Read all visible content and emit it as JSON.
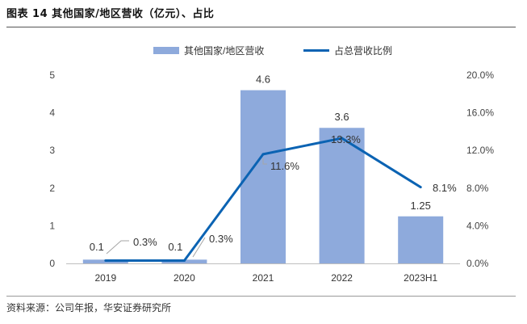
{
  "figure": {
    "title": "图表 14 其他国家/地区营收（亿元）、占比",
    "source": "资料来源：公司年报，华安证券研究所"
  },
  "chart_data": {
    "type": "bar",
    "categories": [
      "2019",
      "2020",
      "2021",
      "2022",
      "2023H1"
    ],
    "series": [
      {
        "name": "其他国家/地区营收",
        "type": "bar",
        "axis": "left",
        "values": [
          0.1,
          0.1,
          4.6,
          3.6,
          1.25
        ],
        "labels": [
          "0.1",
          "0.1",
          "4.6",
          "3.6",
          "1.25"
        ],
        "color": "#8eaadc"
      },
      {
        "name": "占总营收比例",
        "type": "line",
        "axis": "right",
        "values": [
          0.3,
          0.3,
          11.6,
          13.3,
          8.1
        ],
        "labels": [
          "0.3%",
          "0.3%",
          "11.6%",
          "13.3%",
          "8.1%"
        ],
        "color": "#0b63b3"
      }
    ],
    "y_left": {
      "ticks": [
        "0",
        "1",
        "2",
        "3",
        "4",
        "5"
      ],
      "lim": [
        0,
        5
      ]
    },
    "y_right": {
      "ticks": [
        "0.0%",
        "4.0%",
        "8.0%",
        "12.0%",
        "16.0%",
        "20.0%"
      ],
      "lim": [
        0,
        20
      ]
    },
    "legend_position": "top",
    "grid": false
  }
}
